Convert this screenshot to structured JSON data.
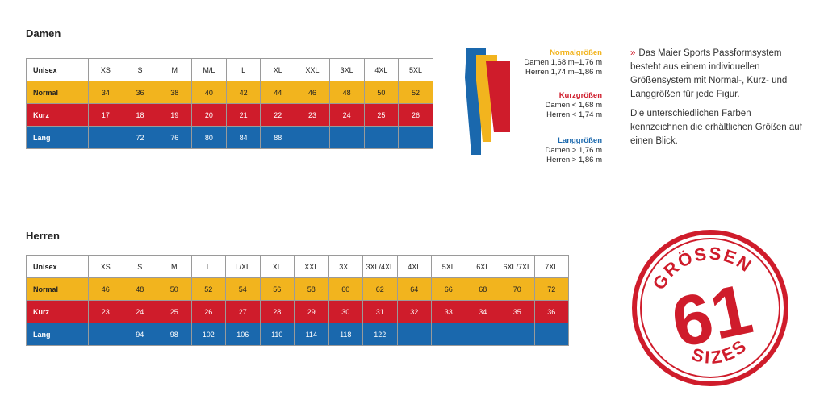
{
  "damen": {
    "title": "Damen",
    "header": [
      "Unisex",
      "XS",
      "S",
      "M",
      "M/L",
      "L",
      "XL",
      "XXL",
      "3XL",
      "4XL",
      "5XL"
    ],
    "rows": [
      {
        "label": "Normal",
        "cells": [
          "34",
          "36",
          "38",
          "40",
          "42",
          "44",
          "46",
          "48",
          "50",
          "52"
        ]
      },
      {
        "label": "Kurz",
        "cells": [
          "17",
          "18",
          "19",
          "20",
          "21",
          "22",
          "23",
          "24",
          "25",
          "26"
        ]
      },
      {
        "label": "Lang",
        "cells": [
          "",
          "72",
          "76",
          "80",
          "84",
          "88",
          "",
          "",
          "",
          ""
        ]
      }
    ]
  },
  "herren": {
    "title": "Herren",
    "header": [
      "Unisex",
      "XS",
      "S",
      "M",
      "L",
      "L/XL",
      "XL",
      "XXL",
      "3XL",
      "3XL/4XL",
      "4XL",
      "5XL",
      "6XL",
      "6XL/7XL",
      "7XL"
    ],
    "rows": [
      {
        "label": "Normal",
        "cells": [
          "46",
          "48",
          "50",
          "52",
          "54",
          "56",
          "58",
          "60",
          "62",
          "64",
          "66",
          "68",
          "70",
          "72"
        ]
      },
      {
        "label": "Kurz",
        "cells": [
          "23",
          "24",
          "25",
          "26",
          "27",
          "28",
          "29",
          "30",
          "31",
          "32",
          "33",
          "34",
          "35",
          "36"
        ]
      },
      {
        "label": "Lang",
        "cells": [
          "",
          "94",
          "98",
          "102",
          "106",
          "110",
          "114",
          "118",
          "122",
          "",
          "",
          "",
          "",
          ""
        ]
      }
    ]
  },
  "fit": {
    "normal": {
      "title": "Normalgrößen",
      "line1": "Damen 1,68 m–1,76 m",
      "line2": "Herren 1,74 m–1,86 m"
    },
    "kurz": {
      "title": "Kurzgrößen",
      "line1": "Damen < 1,68 m",
      "line2": "Herren < 1,74 m"
    },
    "lang": {
      "title": "Langgrößen",
      "line1": "Damen > 1,76 m",
      "line2": "Herren > 1,86 m"
    }
  },
  "description": {
    "marker": "»",
    "p1": "Das Maier Sports Passformsystem besteht aus einem individuellen Größensystem mit Normal-, Kurz- und Langgrößen für jede Figur.",
    "p2": "Die unterschiedlichen Farben kennzeichnen die erhältlichen Größen auf einen Blick."
  },
  "seal": {
    "top_text": "GRÖSSEN",
    "number": "61",
    "bottom_text": "SIZES"
  },
  "colors": {
    "normal": "#f2b41e",
    "kurz": "#cf1c2b",
    "lang": "#1a68ad"
  }
}
